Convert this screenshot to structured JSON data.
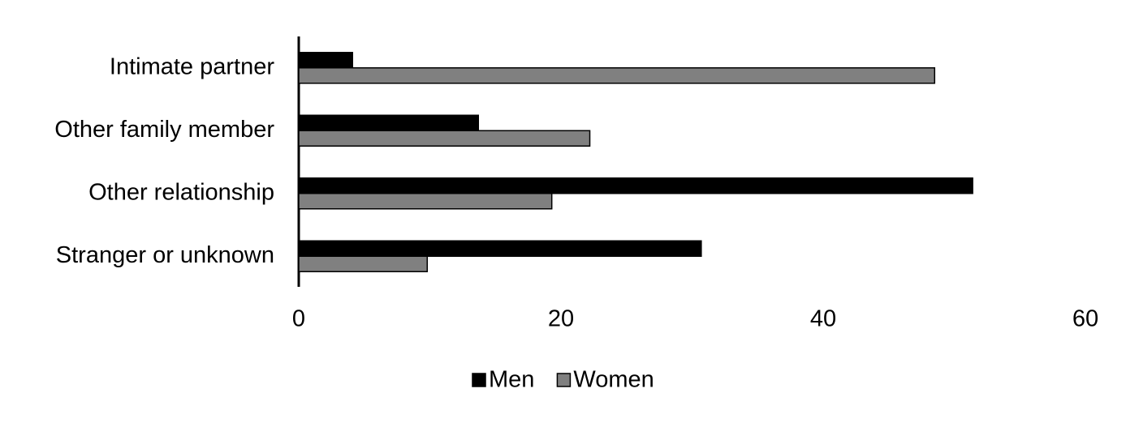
{
  "chart_data": {
    "type": "hbar",
    "categories": [
      "Intimate partner",
      "Other family member",
      "Other relationship",
      "Stranger or unknown"
    ],
    "series": [
      {
        "name": "Men",
        "color": "#000000",
        "values": [
          4.1,
          13.7,
          51.4,
          30.7
        ]
      },
      {
        "name": "Women",
        "color": "#808080",
        "values": [
          48.5,
          22.2,
          19.3,
          9.8
        ]
      }
    ],
    "xlim": [
      0,
      60
    ],
    "xticks": [
      0,
      20,
      40,
      60
    ],
    "legend": "bottom"
  }
}
